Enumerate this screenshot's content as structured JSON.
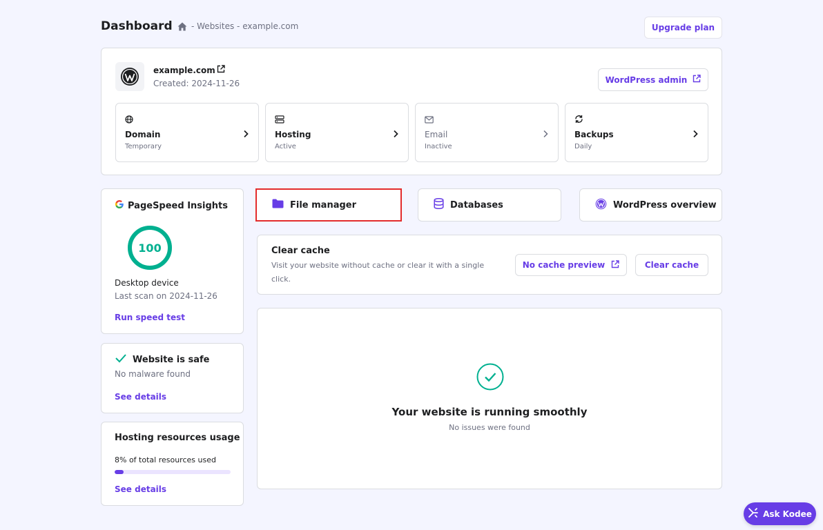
{
  "header": {
    "title": "Dashboard",
    "breadcrumb": "- Websites - example.com",
    "upgrade_label": "Upgrade plan"
  },
  "site": {
    "name": "example.com",
    "created": "Created: 2024-11-26",
    "wp_admin_label": "WordPress admin",
    "tiles": [
      {
        "label": "Domain",
        "sub": "Temporary"
      },
      {
        "label": "Hosting",
        "sub": "Active"
      },
      {
        "label": "Email",
        "sub": "Inactive"
      },
      {
        "label": "Backups",
        "sub": "Daily"
      }
    ]
  },
  "pagespeed": {
    "title": "PageSpeed Insights",
    "score": "100",
    "score_fraction": 1.0,
    "device": "Desktop device",
    "last_scan": "Last scan on 2024-11-26",
    "run_label": "Run speed test"
  },
  "security": {
    "title": "Website is safe",
    "sub": "No malware found",
    "link": "See details"
  },
  "resources": {
    "title": "Hosting resources usage",
    "sub": "8% of total resources used",
    "usage_fraction": 0.08,
    "link": "See details"
  },
  "quick_actions": [
    {
      "label": "File manager",
      "icon": "folder-icon"
    },
    {
      "label": "Databases",
      "icon": "database-icon"
    },
    {
      "label": "WordPress overview",
      "icon": "wordpress-icon"
    }
  ],
  "cache": {
    "title": "Clear cache",
    "description": "Visit your website without cache or clear it with a single click.",
    "preview_label": "No cache preview",
    "clear_label": "Clear cache"
  },
  "status": {
    "title": "Your website is running smoothly",
    "sub": "No issues were found"
  },
  "kodee": {
    "label": "Ask Kodee"
  },
  "colors": {
    "accent": "#673de6",
    "success": "#00b090",
    "highlight": "#e32b2b",
    "background": "#f4f5ff"
  }
}
